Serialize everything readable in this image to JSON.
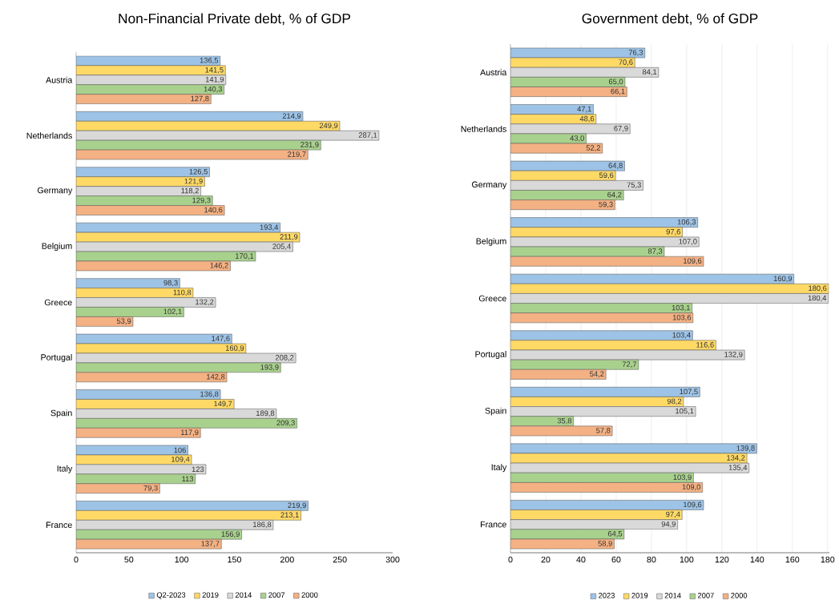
{
  "chart_data": [
    {
      "type": "bar",
      "orientation": "horizontal",
      "title": "Non-Financial Private debt, % of GDP",
      "categories": [
        "Austria",
        "Netherlands",
        "Germany",
        "Belgium",
        "Greece",
        "Portugal",
        "Spain",
        "Italy",
        "France"
      ],
      "series": [
        {
          "name": "Q2-2023",
          "color": "#9dc3e6",
          "values": [
            136.5,
            214.9,
            126.5,
            193.4,
            98.3,
            147.6,
            136.8,
            106,
            219.9
          ],
          "value_labels": [
            "136,5",
            "214,9",
            "126,5",
            "193,4",
            "98,3",
            "147,6",
            "136,8",
            "106",
            "219,9"
          ]
        },
        {
          "name": "2019",
          "color": "#ffd966",
          "values": [
            141.5,
            249.9,
            121.9,
            211.9,
            110.8,
            160.9,
            149.7,
            109.4,
            213.1
          ],
          "value_labels": [
            "141,5",
            "249,9",
            "121,9",
            "211,9",
            "110,8",
            "160,9",
            "149,7",
            "109,4",
            "213,1"
          ]
        },
        {
          "name": "2014",
          "color": "#d9d9d9",
          "values": [
            141.9,
            287.1,
            118.2,
            205.4,
            132.2,
            208.2,
            189.8,
            123,
            186.8
          ],
          "value_labels": [
            "141,9",
            "287,1",
            "118,2",
            "205,4",
            "132,2",
            "208,2",
            "189,8",
            "123",
            "186,8"
          ]
        },
        {
          "name": "2007",
          "color": "#a9d18e",
          "values": [
            140.3,
            231.9,
            129.3,
            170.1,
            102.1,
            193.9,
            209.3,
            113,
            156.9
          ],
          "value_labels": [
            "140,3",
            "231,9",
            "129,3",
            "170,1",
            "102,1",
            "193,9",
            "209,3",
            "113",
            "156,9"
          ]
        },
        {
          "name": "2000",
          "color": "#f4b183",
          "values": [
            127.8,
            219.7,
            140.6,
            146.2,
            53.9,
            142.8,
            117.9,
            79.3,
            137.7
          ],
          "value_labels": [
            "127,8",
            "219,7",
            "140,6",
            "146,2",
            "53,9",
            "142,8",
            "117,9",
            "79,3",
            "137,7"
          ]
        }
      ],
      "xlim": [
        0,
        300
      ],
      "xticks": [
        0,
        50,
        100,
        150,
        200,
        250,
        300
      ],
      "grid": false,
      "legend": "bottom"
    },
    {
      "type": "bar",
      "orientation": "horizontal",
      "title": "Government debt, % of GDP",
      "categories": [
        "Austria",
        "Netherlands",
        "Germany",
        "Belgium",
        "Greece",
        "Portugal",
        "Spain",
        "Italy",
        "France"
      ],
      "series": [
        {
          "name": "2023",
          "color": "#9dc3e6",
          "values": [
            76.3,
            47.1,
            64.8,
            106.3,
            160.9,
            103.4,
            107.5,
            139.8,
            109.6
          ],
          "value_labels": [
            "76,3",
            "47,1",
            "64,8",
            "106,3",
            "160,9",
            "103,4",
            "107,5",
            "139,8",
            "109,6"
          ]
        },
        {
          "name": "2019",
          "color": "#ffd966",
          "values": [
            70.6,
            48.6,
            59.6,
            97.6,
            180.6,
            116.6,
            98.2,
            134.2,
            97.4
          ],
          "value_labels": [
            "70,6",
            "48,6",
            "59,6",
            "97,6",
            "180,6",
            "116,6",
            "98,2",
            "134,2",
            "97,4"
          ]
        },
        {
          "name": "2014",
          "color": "#d9d9d9",
          "values": [
            84.1,
            67.9,
            75.3,
            107.0,
            180.4,
            132.9,
            105.1,
            135.4,
            94.9
          ],
          "value_labels": [
            "84,1",
            "67,9",
            "75,3",
            "107,0",
            "180,4",
            "132,9",
            "105,1",
            "135,4",
            "94,9"
          ]
        },
        {
          "name": "2007",
          "color": "#a9d18e",
          "values": [
            65.0,
            43.0,
            64.2,
            87.3,
            103.1,
            72.7,
            35.8,
            103.9,
            64.5
          ],
          "value_labels": [
            "65,0",
            "43,0",
            "64,2",
            "87,3",
            "103,1",
            "72,7",
            "35,8",
            "103,9",
            "64,5"
          ]
        },
        {
          "name": "2000",
          "color": "#f4b183",
          "values": [
            66.1,
            52.2,
            59.3,
            109.6,
            103.6,
            54.2,
            57.8,
            109.0,
            58.9
          ],
          "value_labels": [
            "66,1",
            "52,2",
            "59,3",
            "109,6",
            "103,6",
            "54,2",
            "57,8",
            "109,0",
            "58,9"
          ]
        }
      ],
      "xlim": [
        0,
        181
      ],
      "xticks": [
        0,
        20,
        40,
        60,
        80,
        100,
        120,
        140,
        160,
        180
      ],
      "grid": "x",
      "legend": "bottom"
    }
  ]
}
